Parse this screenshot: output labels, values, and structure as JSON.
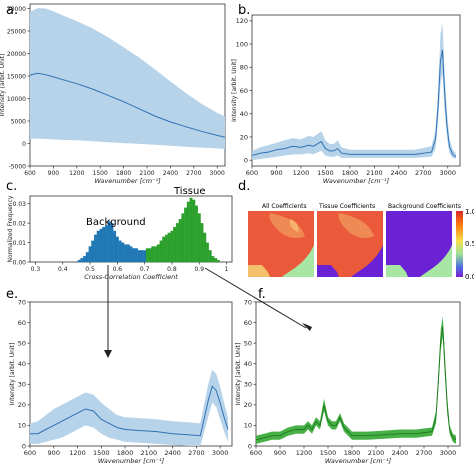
{
  "panel_labels": {
    "a": "a.",
    "b": "b.",
    "c": "c.",
    "d": "d.",
    "e": "e.",
    "f": "f."
  },
  "colors": {
    "blue_line": "#2f72b4",
    "blue_band": "#b7d3ea",
    "blue_bar": "#1f77b4",
    "green_bar": "#2ca02c",
    "green_line": "#1f7a1f",
    "green_band": "#46b046"
  },
  "chart_data": [
    {
      "id": "a",
      "type": "area",
      "xlabel": "Wavenumber [cm⁻¹]",
      "ylabel": "Intensity [arbit. Unit]",
      "xlim": [
        600,
        3100
      ],
      "ylim": [
        -5000,
        31000
      ],
      "xticks": [
        600,
        900,
        1200,
        1500,
        1800,
        2100,
        2400,
        2700,
        3000
      ],
      "yticks": [
        -5000,
        0,
        5000,
        10000,
        15000,
        20000,
        25000,
        30000
      ],
      "x": [
        600,
        700,
        800,
        900,
        1000,
        1200,
        1400,
        1600,
        1800,
        2000,
        2200,
        2400,
        2600,
        2800,
        3000,
        3100
      ],
      "mean": [
        15200,
        15600,
        15300,
        14800,
        14300,
        13300,
        12100,
        10700,
        9300,
        7700,
        6100,
        4800,
        3700,
        2700,
        1800,
        1400
      ],
      "upper": [
        29300,
        30100,
        30000,
        29400,
        28600,
        27200,
        25600,
        23600,
        21400,
        19100,
        16500,
        13800,
        11200,
        8800,
        6800,
        6000
      ],
      "lower": [
        1100,
        1100,
        1000,
        900,
        800,
        700,
        500,
        300,
        100,
        -100,
        -300,
        -500,
        -700,
        -900,
        -1100,
        -1200
      ]
    },
    {
      "id": "b",
      "type": "line",
      "xlabel": "Wavenumber [cm⁻¹]",
      "ylabel": "Intensity [arbit. Unit]",
      "xlim": [
        600,
        3150
      ],
      "ylim": [
        -5,
        125
      ],
      "xticks": [
        600,
        900,
        1200,
        1500,
        1800,
        2100,
        2400,
        2700,
        3000
      ],
      "yticks": [
        0,
        20,
        40,
        60,
        80,
        100,
        120
      ],
      "x": [
        600,
        700,
        800,
        900,
        1000,
        1100,
        1200,
        1300,
        1350,
        1450,
        1500,
        1550,
        1600,
        1650,
        1700,
        1800,
        2000,
        2200,
        2400,
        2600,
        2800,
        2850,
        2880,
        2910,
        2935,
        2960,
        2990,
        3020,
        3060,
        3100
      ],
      "mean": [
        4,
        6,
        7,
        9,
        10,
        12,
        11,
        13,
        12,
        16,
        10,
        8,
        8,
        10,
        6,
        5,
        5,
        5,
        5,
        5,
        7,
        18,
        45,
        85,
        95,
        60,
        30,
        12,
        5,
        3
      ],
      "upper": [
        8,
        11,
        13,
        15,
        17,
        19,
        18,
        21,
        20,
        25,
        17,
        14,
        14,
        17,
        11,
        9,
        9,
        9,
        9,
        9,
        12,
        26,
        58,
        108,
        118,
        78,
        42,
        19,
        9,
        6
      ],
      "lower": [
        0,
        1,
        2,
        3,
        4,
        5,
        5,
        6,
        5,
        8,
        4,
        3,
        3,
        4,
        2,
        2,
        2,
        2,
        2,
        2,
        3,
        10,
        32,
        65,
        75,
        44,
        20,
        6,
        2,
        1
      ]
    },
    {
      "id": "c",
      "type": "bar",
      "xlabel": "Cross-Correlation Coefficient",
      "ylabel": "Normalized Frequency",
      "xlim": [
        0.28,
        1.02
      ],
      "ylim": [
        0,
        0.034
      ],
      "xticks": [
        0.3,
        0.4,
        0.5,
        0.6,
        0.7,
        0.8,
        0.9,
        1.0
      ],
      "yticks": [
        0.0,
        0.01,
        0.02,
        0.03
      ],
      "annotations": [
        "Background",
        "Tissue"
      ],
      "series": [
        {
          "name": "Background",
          "x": [
            0.46,
            0.47,
            0.48,
            0.49,
            0.5,
            0.51,
            0.52,
            0.53,
            0.54,
            0.55,
            0.56,
            0.57,
            0.58,
            0.59,
            0.6,
            0.61,
            0.62,
            0.63,
            0.64,
            0.65,
            0.66,
            0.67,
            0.68,
            0.69,
            0.7
          ],
          "values": [
            0.001,
            0.002,
            0.003,
            0.005,
            0.008,
            0.011,
            0.014,
            0.016,
            0.017,
            0.018,
            0.019,
            0.021,
            0.02,
            0.016,
            0.013,
            0.011,
            0.01,
            0.009,
            0.009,
            0.008,
            0.007,
            0.007,
            0.006,
            0.006,
            0.006
          ]
        },
        {
          "name": "Tissue",
          "x": [
            0.71,
            0.72,
            0.73,
            0.74,
            0.75,
            0.76,
            0.77,
            0.78,
            0.79,
            0.8,
            0.81,
            0.82,
            0.83,
            0.84,
            0.85,
            0.86,
            0.87,
            0.88,
            0.89,
            0.9,
            0.91,
            0.92,
            0.93,
            0.94,
            0.95,
            0.96,
            0.97
          ],
          "values": [
            0.007,
            0.007,
            0.008,
            0.008,
            0.009,
            0.011,
            0.013,
            0.014,
            0.015,
            0.016,
            0.018,
            0.02,
            0.022,
            0.025,
            0.028,
            0.031,
            0.033,
            0.032,
            0.029,
            0.025,
            0.02,
            0.015,
            0.01,
            0.006,
            0.003,
            0.002,
            0.001
          ]
        }
      ]
    },
    {
      "id": "d",
      "type": "heatmap",
      "titles": [
        "All Coefficients",
        "Tissue Coefficients",
        "Background Coefficients"
      ],
      "colorbar_ticks": [
        "1.0",
        "0.5",
        "0.0"
      ],
      "colorbar_range": [
        0,
        1
      ]
    },
    {
      "id": "e",
      "type": "line",
      "xlabel": "Wavenumber [cm⁻¹]",
      "ylabel": "Intensity [arbit. Unit]",
      "xlim": [
        600,
        3150
      ],
      "ylim": [
        0,
        70
      ],
      "xticks": [
        600,
        900,
        1200,
        1500,
        1800,
        2100,
        2400,
        2700,
        3000
      ],
      "yticks": [
        0,
        10,
        20,
        30,
        40,
        50,
        60,
        70
      ],
      "x": [
        600,
        700,
        800,
        900,
        1000,
        1100,
        1200,
        1300,
        1400,
        1500,
        1600,
        1700,
        1800,
        2000,
        2200,
        2400,
        2600,
        2750,
        2850,
        2900,
        2950,
        3000,
        3050,
        3100
      ],
      "mean": [
        6,
        6,
        8,
        10,
        12,
        14,
        16,
        18,
        17,
        13,
        11,
        9,
        8,
        7.5,
        7,
        6,
        5.5,
        5,
        22,
        29,
        27,
        21,
        14,
        8
      ],
      "upper": [
        11,
        12,
        15,
        18,
        20,
        22,
        24,
        26,
        25,
        21,
        18,
        15,
        14,
        13.5,
        13,
        12,
        11.5,
        11,
        30,
        37,
        35,
        29,
        21,
        14
      ],
      "lower": [
        1,
        1,
        2,
        3,
        4,
        6,
        8,
        10,
        9,
        6,
        4,
        3,
        2,
        1.5,
        1,
        0.5,
        0,
        0,
        14,
        21,
        19,
        13,
        7,
        2
      ]
    },
    {
      "id": "f",
      "type": "line",
      "xlabel": "Wavenumber [cm⁻¹]",
      "ylabel": "Intensity [arbit. Unit]",
      "xlim": [
        600,
        3150
      ],
      "ylim": [
        0,
        70
      ],
      "xticks": [
        600,
        900,
        1200,
        1500,
        1800,
        2100,
        2400,
        2700,
        3000
      ],
      "yticks": [
        0,
        10,
        20,
        30,
        40,
        50,
        60,
        70
      ],
      "x": [
        600,
        700,
        800,
        900,
        1000,
        1100,
        1200,
        1250,
        1300,
        1350,
        1400,
        1450,
        1500,
        1550,
        1600,
        1650,
        1700,
        1800,
        2000,
        2200,
        2400,
        2600,
        2800,
        2850,
        2880,
        2910,
        2935,
        2960,
        2990,
        3020,
        3060,
        3100
      ],
      "mean": [
        3,
        4,
        5,
        5,
        7,
        8,
        8,
        10,
        8,
        12,
        10,
        20,
        12,
        10,
        10,
        14,
        9,
        5,
        5,
        5.5,
        6,
        6,
        7,
        14,
        32,
        52,
        58,
        40,
        20,
        8,
        4,
        3
      ],
      "upper": [
        5,
        6,
        7,
        7,
        9,
        10,
        10,
        12,
        10,
        14,
        12,
        23,
        14,
        12,
        12,
        16,
        11,
        7,
        7,
        7.5,
        8,
        8,
        9,
        17,
        36,
        57,
        63,
        45,
        24,
        10,
        6,
        5
      ],
      "lower": [
        1,
        2,
        3,
        3,
        5,
        6,
        6,
        8,
        6,
        10,
        8,
        17,
        10,
        8,
        8,
        12,
        7,
        3,
        3,
        3.5,
        4,
        4,
        5,
        11,
        28,
        47,
        53,
        35,
        16,
        6,
        2,
        1
      ]
    }
  ]
}
